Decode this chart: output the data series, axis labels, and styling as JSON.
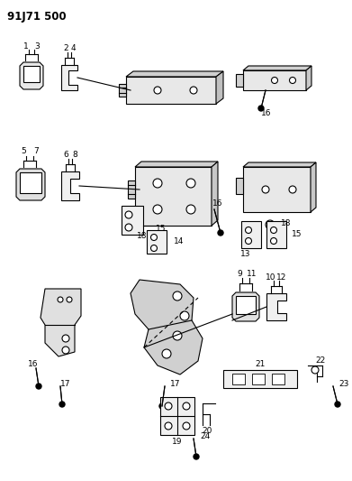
{
  "title": "91J71 500",
  "background_color": "#ffffff",
  "line_color": "#000000",
  "fig_width": 3.91,
  "fig_height": 5.33,
  "dpi": 100
}
